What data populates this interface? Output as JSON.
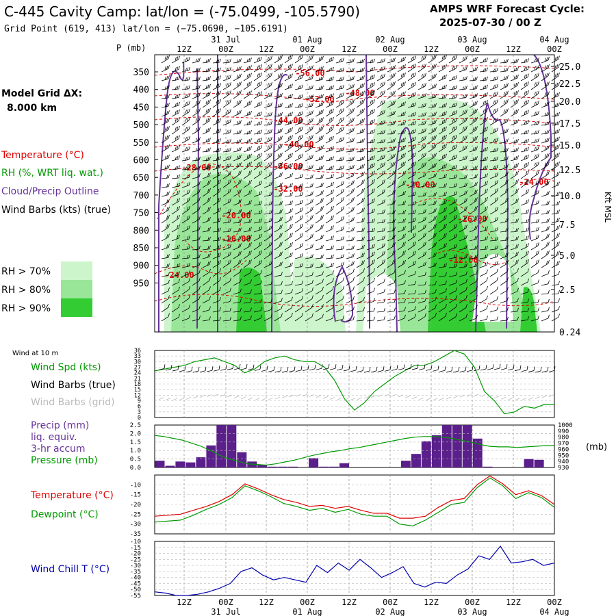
{
  "header": {
    "title": "C-445 Cavity Camp:  lat/lon = (-75.0499, -105.5790)",
    "subtitle": "Grid Point (619, 413) lat/lon = (−75.0690, −105.6191)",
    "cycle_line1": "AMPS WRF Forecast Cycle:",
    "cycle_line2": "2025-07-30 / 00  Z"
  },
  "left_labels": {
    "model_grid_line1": "Model Grid ΔX:",
    "model_grid_line2": "8.000 km",
    "temperature": "Temperature (°C)",
    "rh": "RH (%, WRT liq. wat.)",
    "cloud": "Cloud/Precip Outline",
    "wind_barbs": "Wind Barbs (kts) (true)",
    "rh70": "RH > 70%",
    "rh80": "RH > 80%",
    "rh90": "RH > 90%",
    "wind_10m": "Wind at 10 m",
    "wind_spd": "Wind Spd (kts)",
    "wind_barbs_true": "Wind Barbs (true)",
    "wind_barbs_grid": "Wind Barbs (grid)",
    "precip1": "Precip (mm)",
    "precip2": "liq. equiv.",
    "precip3": "3-hr accum",
    "pressure": "Pressure (mb)",
    "temp2": "Temperature (°C)",
    "dewpoint": "Dewpoint (°C)",
    "windchill": "Wind Chill T (°C)",
    "mb_unit": "(mb)"
  },
  "colors": {
    "temperature": "#dd0000",
    "rh": "#009900",
    "cloud": "#663399",
    "wind": "#000000",
    "grid_wind": "#bbbbbb",
    "rh70": "#ccf5cc",
    "rh80": "#99e699",
    "rh90": "#33cc33",
    "precip": "#5a1f8a",
    "windchill": "#0000aa"
  },
  "time_axis": {
    "top_hours": [
      "12Z",
      "00Z",
      "12Z",
      "00Z",
      "12Z",
      "00Z",
      "12Z",
      "00Z",
      "12Z",
      "00Z"
    ],
    "top_dates": [
      "31 Jul",
      "01 Aug",
      "02 Aug",
      "03 Aug",
      "04 Aug"
    ],
    "bottom_hours": [
      "12Z",
      "00Z",
      "12Z",
      "00Z",
      "12Z",
      "00Z",
      "12Z",
      "00Z",
      "12Z",
      "00Z"
    ],
    "bottom_dates": [
      "31 Jul",
      "01 Aug",
      "02 Aug",
      "03 Aug",
      "04 Aug"
    ]
  },
  "chart_data": [
    {
      "type": "heatmap",
      "name": "cross-section",
      "y_axis_label": "P (mb)",
      "pressure_ticks": [
        "350",
        "400",
        "450",
        "500",
        "550",
        "600",
        "650",
        "700",
        "750",
        "800",
        "850",
        "900",
        "950"
      ],
      "height_ticks": [
        "25.0",
        "22.5",
        "20.0",
        "17.5",
        "15.0",
        "12.5",
        "10.0",
        "7.5",
        "5.0",
        "2.5",
        "0.24"
      ],
      "height_label": "Kft MSL",
      "temperature_labels": [
        "-56.00",
        "-52.00",
        "-48.00",
        "-44.00",
        "-40.00",
        "-36.00",
        "-32.00",
        "-28.00",
        "-20.00",
        "-16.00",
        "-24.00",
        "-20.00",
        "-16.00",
        "-12.00",
        "-24.00"
      ]
    },
    {
      "type": "line",
      "name": "wind-speed",
      "y_ticks": [
        "36",
        "33",
        "30",
        "27",
        "24",
        "21",
        "18",
        "15",
        "12",
        "9",
        "6",
        "3",
        "0"
      ],
      "ylim": [
        0,
        36
      ],
      "values": [
        25,
        26,
        27,
        28,
        30,
        31,
        32,
        30,
        28,
        24,
        26,
        30,
        32,
        33,
        31,
        30,
        30,
        27,
        20,
        10,
        4,
        8,
        14,
        18,
        22,
        25,
        28,
        28,
        30,
        33,
        36,
        34,
        27,
        14,
        9,
        2,
        3,
        6,
        5,
        7,
        7
      ]
    },
    {
      "type": "bar",
      "name": "precip",
      "y_ticks": [
        "2.5",
        "2.0",
        "1.5",
        "1.0",
        "0.5",
        "0.0"
      ],
      "ylim": [
        0,
        2.5
      ],
      "values": [
        0.4,
        0.1,
        0.35,
        0.3,
        0.6,
        1.3,
        2.5,
        2.5,
        0.9,
        0.35,
        0.15,
        0.05,
        0.05,
        0.05,
        0.0,
        0.55,
        0.05,
        0.05,
        0.25,
        0.0,
        0.0,
        0.0,
        0.0,
        0.0,
        0.4,
        0.8,
        1.55,
        1.9,
        2.5,
        2.5,
        2.5,
        1.7,
        0.05,
        0.0,
        0.0,
        0.0,
        0.5,
        0.45,
        0.0
      ],
      "pressure_ticks": [
        "1000",
        "990",
        "980",
        "970",
        "960",
        "950",
        "940",
        "930"
      ],
      "pressure_lim": [
        930,
        1000
      ],
      "pressure": [
        983,
        981,
        978,
        975,
        970,
        965,
        958,
        950,
        944,
        940,
        936,
        935,
        934,
        936,
        939,
        942,
        946,
        950,
        953,
        956,
        958,
        961,
        963,
        966,
        969,
        972,
        975,
        978,
        980,
        981,
        981,
        980,
        978,
        975,
        972,
        968,
        965,
        964,
        964,
        963,
        964,
        965,
        966,
        966
      ]
    },
    {
      "type": "line",
      "name": "temperature-dewpoint",
      "y_ticks": [
        "-10",
        "-15",
        "-20",
        "-25",
        "-30",
        "-35"
      ],
      "ylim": [
        -35,
        -5
      ],
      "series": [
        {
          "name": "Temperature",
          "values": [
            -26,
            -25.5,
            -25,
            -23,
            -21,
            -18.5,
            -15,
            -9.5,
            -12,
            -15,
            -17.5,
            -19,
            -21,
            -20.5,
            -22,
            -21,
            -23,
            -24.5,
            -24.5,
            -27,
            -27,
            -26,
            -21.5,
            -18,
            -17,
            -10,
            -5.5,
            -9.5,
            -15,
            -13,
            -15.5,
            -20
          ]
        },
        {
          "name": "Dewpoint",
          "values": [
            -29,
            -28.5,
            -28,
            -25.5,
            -22.5,
            -20,
            -16.5,
            -10.5,
            -13,
            -16,
            -19.5,
            -21,
            -23,
            -22,
            -24,
            -22.5,
            -25,
            -26,
            -26,
            -30,
            -31,
            -28,
            -24,
            -20,
            -19,
            -11.5,
            -6.5,
            -10.5,
            -17,
            -14,
            -16.5,
            -21.5
          ]
        }
      ]
    },
    {
      "type": "line",
      "name": "wind-chill",
      "y_ticks": [
        "-10",
        "-15",
        "-20",
        "-25",
        "-30",
        "-35",
        "-40",
        "-45",
        "-50",
        "-55"
      ],
      "ylim": [
        -55,
        -10
      ],
      "values": [
        -52,
        -53,
        -55,
        -55,
        -54,
        -52,
        -49,
        -45,
        -35,
        -32,
        -38,
        -42,
        -40,
        -42,
        -44,
        -30,
        -36,
        -28,
        -34,
        -25,
        -32,
        -40,
        -36,
        -31,
        -45,
        -48,
        -44,
        -45,
        -38,
        -33,
        -22,
        -25,
        -14,
        -28,
        -27,
        -25,
        -30,
        -28
      ]
    }
  ]
}
